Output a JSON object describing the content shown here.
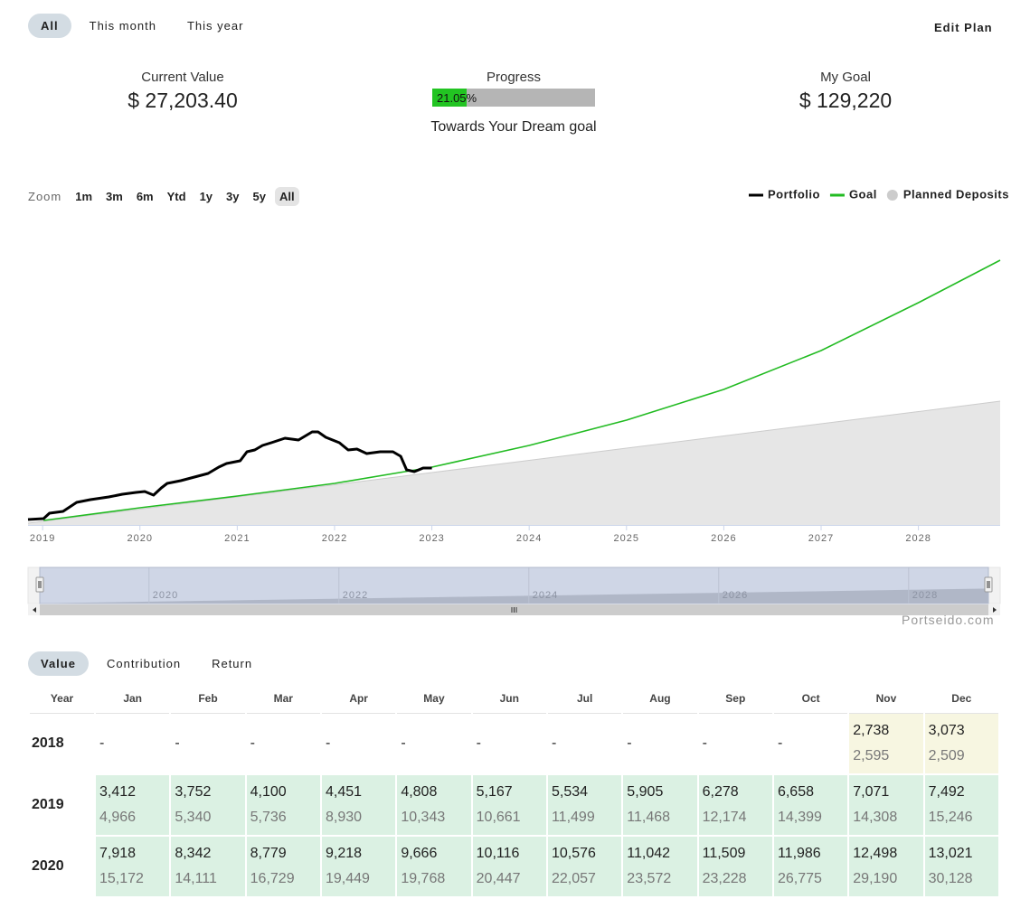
{
  "tabs": {
    "items": [
      "All",
      "This month",
      "This year"
    ],
    "active": 0
  },
  "edit_plan": "Edit Plan",
  "summary": {
    "current": {
      "label": "Current Value",
      "value": "$ 27,203.40"
    },
    "progress": {
      "label": "Progress",
      "value": 21.05,
      "value_label": "21.05%",
      "caption": "Towards Your Dream goal"
    },
    "goal": {
      "label": "My Goal",
      "value": "$ 129,220"
    }
  },
  "zoom": {
    "label": "Zoom",
    "buttons": [
      "1m",
      "3m",
      "6m",
      "Ytd",
      "1y",
      "3y",
      "5y",
      "All"
    ],
    "active": 7
  },
  "chart_data": {
    "type": "line",
    "xlim": [
      2018.85,
      2028.84
    ],
    "xticks": [
      2019,
      2020,
      2021,
      2022,
      2023,
      2024,
      2025,
      2026,
      2027,
      2028
    ],
    "ylim": [
      0,
      146000
    ],
    "navigator_xticks": [
      2020,
      2022,
      2024,
      2026,
      2028
    ],
    "series": [
      {
        "name": "Planned Deposits",
        "type": "area",
        "color": "#e6e6e6",
        "x": [
          2018.85,
          2019,
          2020,
          2021,
          2022,
          2023,
          2024,
          2025,
          2026,
          2027,
          2028,
          2028.84
        ],
        "values": [
          882,
          1764,
          7718,
          13671,
          19625,
          25578,
          31532,
          37485,
          43439,
          49392,
          55346,
          60417
        ]
      },
      {
        "name": "Goal",
        "type": "line",
        "color": "#22bb22",
        "x": [
          2019.01,
          2020,
          2021,
          2022,
          2023,
          2024,
          2025,
          2026,
          2027,
          2028,
          2028.84
        ],
        "values": [
          2205,
          8379,
          14112,
          20286,
          28224,
          38808,
          51156,
          66150,
          85113,
          108486,
          129220
        ]
      },
      {
        "name": "Portfolio",
        "type": "line",
        "color": "#000000",
        "x": [
          2018.85,
          2019.01,
          2019.07,
          2019.21,
          2019.35,
          2019.49,
          2019.68,
          2019.82,
          2019.96,
          2020.05,
          2020.14,
          2020.22,
          2020.28,
          2020.42,
          2020.56,
          2020.7,
          2020.81,
          2020.89,
          2021.03,
          2021.1,
          2021.18,
          2021.26,
          2021.35,
          2021.49,
          2021.63,
          2021.77,
          2021.83,
          2021.91,
          2022.05,
          2022.14,
          2022.23,
          2022.33,
          2022.47,
          2022.6,
          2022.68,
          2022.74,
          2022.82,
          2022.91,
          2023.0
        ],
        "values": [
          2646,
          3087,
          5733,
          6615,
          11025,
          12348,
          13671,
          14994,
          15876,
          16317,
          14553,
          18081,
          20286,
          21609,
          23373,
          25137,
          28224,
          29988,
          31311,
          35721,
          36603,
          38808,
          40131,
          42336,
          41454,
          45423,
          45423,
          42777,
          40131,
          36603,
          37044,
          34839,
          35721,
          35721,
          33516,
          26901,
          26019,
          27783,
          27783
        ]
      }
    ],
    "legend_order": [
      2,
      1,
      0
    ]
  },
  "credit": "Portseido.com",
  "table": {
    "tabs": [
      "Value",
      "Contribution",
      "Return"
    ],
    "active": 0,
    "header": [
      "Year",
      "Jan",
      "Feb",
      "Mar",
      "Apr",
      "May",
      "Jun",
      "Jul",
      "Aug",
      "Sep",
      "Oct",
      "Nov",
      "Dec"
    ],
    "rows": [
      {
        "year": "2018",
        "color": "#f7f6e1",
        "cells": [
          "-",
          "-",
          "-",
          "-",
          "-",
          "-",
          "-",
          "-",
          "-",
          "-",
          [
            "2,738",
            "2,595"
          ],
          [
            "3,073",
            "2,509"
          ]
        ]
      },
      {
        "year": "2019",
        "color": "#dbf1e3",
        "cells": [
          [
            "3,412",
            "4,966"
          ],
          [
            "3,752",
            "5,340"
          ],
          [
            "4,100",
            "5,736"
          ],
          [
            "4,451",
            "8,930"
          ],
          [
            "4,808",
            "10,343"
          ],
          [
            "5,167",
            "10,661"
          ],
          [
            "5,534",
            "11,499"
          ],
          [
            "5,905",
            "11,468"
          ],
          [
            "6,278",
            "12,174"
          ],
          [
            "6,658",
            "14,399"
          ],
          [
            "7,071",
            "14,308"
          ],
          [
            "7,492",
            "15,246"
          ]
        ]
      },
      {
        "year": "2020",
        "color": "#dbf1e3",
        "cells": [
          [
            "7,918",
            "15,172"
          ],
          [
            "8,342",
            "14,111"
          ],
          [
            "8,779",
            "16,729"
          ],
          [
            "9,218",
            "19,449"
          ],
          [
            "9,666",
            "19,768"
          ],
          [
            "10,116",
            "20,447"
          ],
          [
            "10,576",
            "22,057"
          ],
          [
            "11,042",
            "23,572"
          ],
          [
            "11,509",
            "23,228"
          ],
          [
            "11,986",
            "26,775"
          ],
          [
            "12,498",
            "29,190"
          ],
          [
            "13,021",
            "30,128"
          ]
        ]
      }
    ]
  }
}
